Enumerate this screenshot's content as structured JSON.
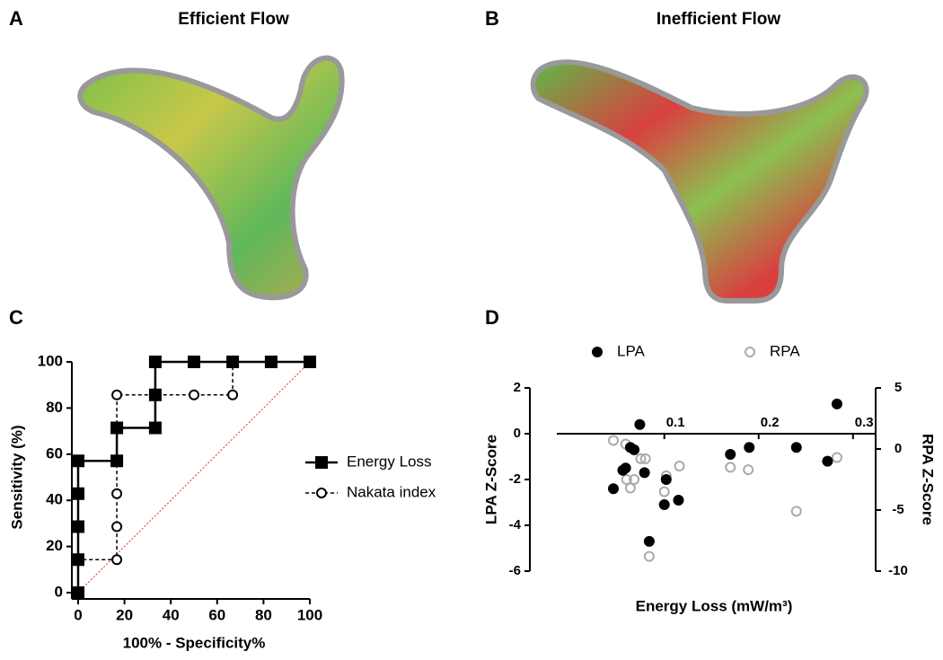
{
  "panels": {
    "A": {
      "label": "A",
      "title": "Efficient Flow"
    },
    "B": {
      "label": "B",
      "title": "Inefficient Flow"
    }
  },
  "chart_data": [
    {
      "type": "line",
      "label": "C",
      "xlabel": "100% - Specificity%",
      "ylabel": "Sensitivity (%)",
      "xlim": [
        0,
        100
      ],
      "ylim": [
        0,
        100
      ],
      "xticks": [
        0,
        20,
        40,
        60,
        80,
        100
      ],
      "yticks": [
        0,
        20,
        40,
        60,
        80,
        100
      ],
      "series": [
        {
          "name": "Energy Loss",
          "color": "#000000",
          "marker": "square",
          "dash": false,
          "x": [
            0,
            0,
            0,
            0,
            0,
            16.7,
            16.7,
            33.3,
            33.3,
            33.3,
            50,
            66.7,
            83.3,
            100
          ],
          "values": [
            0,
            14.3,
            28.6,
            42.9,
            57.1,
            57.1,
            71.4,
            71.4,
            85.7,
            100,
            100,
            100,
            100,
            100
          ]
        },
        {
          "name": "Nakata index",
          "color": "#000000",
          "marker": "circle-open",
          "dash": true,
          "x": [
            0,
            0,
            16.7,
            16.7,
            16.7,
            16.7,
            50,
            66.7,
            66.7
          ],
          "values": [
            0,
            14.3,
            14.3,
            28.6,
            42.9,
            85.7,
            85.7,
            85.7,
            100
          ]
        }
      ]
    },
    {
      "type": "scatter",
      "label": "D",
      "xlabel": "Energy Loss (mW/m³)",
      "ylabel": "LPA Z-Score",
      "y2label": "RPA Z-Score",
      "xlim": [
        -0.033,
        0.324
      ],
      "xticks": [
        0.1,
        0.2,
        0.3
      ],
      "ylim": [
        -6,
        2
      ],
      "yticks": [
        -6,
        -4,
        -2,
        0,
        2
      ],
      "y2lim": [
        -10,
        5
      ],
      "y2ticks": [
        -10,
        -5,
        0,
        5
      ],
      "series": [
        {
          "name": "LPA",
          "color": "#000000",
          "marker": "circle",
          "x": [
            0.046,
            0.056,
            0.059,
            0.064,
            0.068,
            0.074,
            0.079,
            0.084,
            0.1,
            0.102,
            0.115,
            0.17,
            0.19,
            0.24,
            0.273,
            0.283
          ],
          "values": [
            -2.4,
            -1.6,
            -1.5,
            -0.6,
            -0.7,
            0.4,
            -1.7,
            -4.7,
            -3.1,
            -2.0,
            -2.9,
            -0.9,
            -0.6,
            -0.6,
            -1.2,
            1.3
          ]
        },
        {
          "name": "RPA",
          "color": "#aaaaaa",
          "marker": "circle-open",
          "axis": "y2",
          "x": [
            0.046,
            0.059,
            0.06,
            0.064,
            0.068,
            0.075,
            0.08,
            0.084,
            0.1,
            0.102,
            0.116,
            0.17,
            0.189,
            0.24,
            0.273,
            0.283
          ],
          "values": [
            0.7,
            0.4,
            -2.5,
            -3.2,
            -2.5,
            -0.8,
            -0.8,
            -8.8,
            -3.5,
            -2.2,
            -1.4,
            -1.5,
            -1.7,
            -5.1,
            -1.0,
            -0.7
          ]
        }
      ]
    }
  ]
}
